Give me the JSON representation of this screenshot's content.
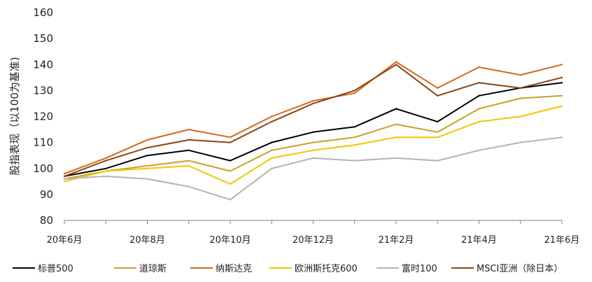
{
  "chart_data": {
    "type": "line",
    "ylabel": "股指表现（以100为基准)",
    "ylim": [
      80,
      160
    ],
    "yticks": [
      80,
      90,
      100,
      110,
      120,
      130,
      140,
      150,
      160
    ],
    "xticks": [
      "20年6月",
      "20年8月",
      "20年10月",
      "20年12月",
      "21年2月",
      "21年4月",
      "21年6月"
    ],
    "x": [
      "20年6月",
      "20年7月",
      "20年8月",
      "20年9月",
      "20年10月",
      "20年11月",
      "20年12月",
      "21年1月",
      "21年2月",
      "21年3月",
      "21年4月",
      "21年5月",
      "21年6月"
    ],
    "grid": false,
    "legend_position": "bottom",
    "series": [
      {
        "name": "标普500",
        "color": "#000000",
        "values": [
          97,
          100,
          105,
          107,
          103,
          110,
          114,
          116,
          123,
          118,
          128,
          131,
          133
        ]
      },
      {
        "name": "道琼斯",
        "color": "#c9a227",
        "values": [
          96,
          99,
          101,
          103,
          99,
          107,
          110,
          112,
          117,
          114,
          123,
          127,
          128
        ]
      },
      {
        "name": "纳斯达克",
        "color": "#d2691e",
        "values": [
          98,
          104,
          111,
          115,
          112,
          120,
          126,
          129,
          141,
          131,
          139,
          136,
          140
        ]
      },
      {
        "name": "欧洲斯托克600",
        "color": "#f5c400",
        "values": [
          95,
          99,
          100,
          101,
          94,
          104,
          107,
          109,
          112,
          112,
          118,
          120,
          124
        ]
      },
      {
        "name": "富时100",
        "color": "#b3b3b3",
        "values": [
          96,
          97,
          96,
          93,
          88,
          100,
          104,
          103,
          104,
          103,
          107,
          110,
          112
        ]
      },
      {
        "name": "MSCI亚洲（除日本）",
        "color": "#8b4513",
        "values": [
          97,
          103,
          108,
          111,
          110,
          118,
          125,
          130,
          140,
          128,
          133,
          131,
          135
        ]
      }
    ]
  }
}
